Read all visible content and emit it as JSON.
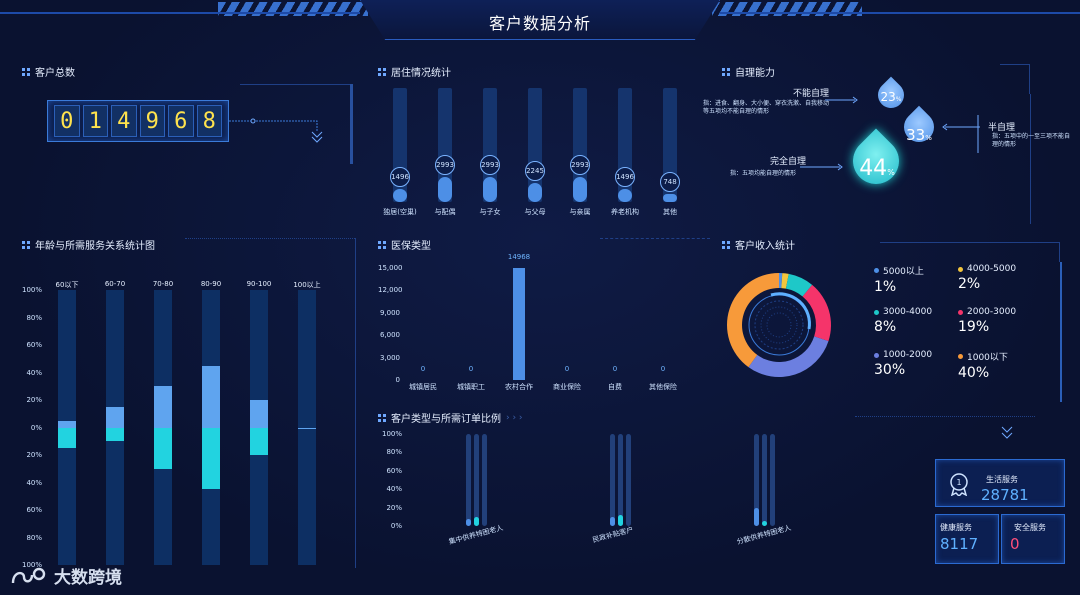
{
  "title": "客户数据分析",
  "panels": {
    "customer_total": "客户总数",
    "residence": "居住情况统计",
    "self_care": "自理能力",
    "age_service": "年龄与所需服务关系统计图",
    "insurance": "医保类型",
    "income": "客户收入统计",
    "order_ratio": "客户类型与所需订单比例"
  },
  "customer_total": {
    "digits": [
      "0",
      "1",
      "4",
      "9",
      "6",
      "8"
    ]
  },
  "residence": [
    {
      "label": "独居(空巢)",
      "value": "1496",
      "fill": 0.11
    },
    {
      "label": "与配偶",
      "value": "2993",
      "fill": 0.22
    },
    {
      "label": "与子女",
      "value": "2993",
      "fill": 0.22
    },
    {
      "label": "与父母",
      "value": "2245",
      "fill": 0.17
    },
    {
      "label": "与亲属",
      "value": "2993",
      "fill": 0.22
    },
    {
      "label": "养老机构",
      "value": "1496",
      "fill": 0.11
    },
    {
      "label": "其他",
      "value": "748",
      "fill": 0.06
    }
  ],
  "self_care": {
    "not_self": {
      "name": "不能自理",
      "desc": "指：进食、翻身、大小便、穿衣洗漱、自我移动等五项均不能自理的情形",
      "pct": "23",
      "unit": "%"
    },
    "semi": {
      "name": "半自理",
      "desc": "指：五项中的一至三项不能自理的情形",
      "pct": "33",
      "unit": "%"
    },
    "full": {
      "name": "完全自理",
      "desc": "指：五项均能自理的情形",
      "pct": "44",
      "unit": "%"
    }
  },
  "age_chart": {
    "yticks": [
      "100%",
      "80%",
      "60%",
      "40%",
      "20%",
      "0%",
      "20%",
      "40%",
      "60%",
      "80%",
      "100%"
    ],
    "groups": [
      {
        "label": "60以下",
        "up": 5,
        "down": 15
      },
      {
        "label": "60-70",
        "up": 15,
        "down": 10
      },
      {
        "label": "70-80",
        "up": 30,
        "down": 30
      },
      {
        "label": "80-90",
        "up": 45,
        "down": 45
      },
      {
        "label": "90-100",
        "up": 20,
        "down": 20
      },
      {
        "label": "100以上",
        "up": 0,
        "down": 0
      }
    ]
  },
  "chart_data": {
    "type": "bar",
    "categories": [
      "城镇居民",
      "城镇职工",
      "农村合作",
      "商业保险",
      "自费",
      "其他保险"
    ],
    "values": [
      0,
      0,
      14968,
      0,
      0,
      0
    ],
    "value_labels": [
      "0",
      "0",
      "14968",
      "0",
      "0",
      "0"
    ],
    "yticks": [
      "15,000",
      "12,000",
      "9,000",
      "6,000",
      "3,000",
      "0"
    ],
    "ylim": [
      0,
      15000
    ]
  },
  "order_ratio": {
    "yticks": [
      "100%",
      "80%",
      "60%",
      "40%",
      "20%",
      "0%"
    ],
    "groups": [
      {
        "label": "集中供养特困老人",
        "values": [
          8,
          10,
          0
        ]
      },
      {
        "label": "民政补贴客户",
        "values": [
          10,
          12,
          0
        ]
      },
      {
        "label": "分散供养特困老人",
        "values": [
          20,
          5,
          0
        ]
      }
    ]
  },
  "income": {
    "items": [
      {
        "name": "5000以上",
        "pct": "1%",
        "value": 1,
        "color": "#4d8fe6"
      },
      {
        "name": "4000-5000",
        "pct": "2%",
        "value": 2,
        "color": "#f2c53d"
      },
      {
        "name": "3000-4000",
        "pct": "8%",
        "value": 8,
        "color": "#1ec8c8"
      },
      {
        "name": "2000-3000",
        "pct": "19%",
        "value": 19,
        "color": "#f5346a"
      },
      {
        "name": "1000-2000",
        "pct": "30%",
        "value": 30,
        "color": "#6c7fe0"
      },
      {
        "name": "1000以下",
        "pct": "40%",
        "value": 40,
        "color": "#f79a3a"
      }
    ]
  },
  "services": {
    "life": {
      "name": "生活服务",
      "value": "28781"
    },
    "health": {
      "name": "健康服务",
      "value": "8117"
    },
    "safety": {
      "name": "安全服务",
      "value": "0"
    }
  },
  "logo": {
    "text": "大数跨境"
  }
}
